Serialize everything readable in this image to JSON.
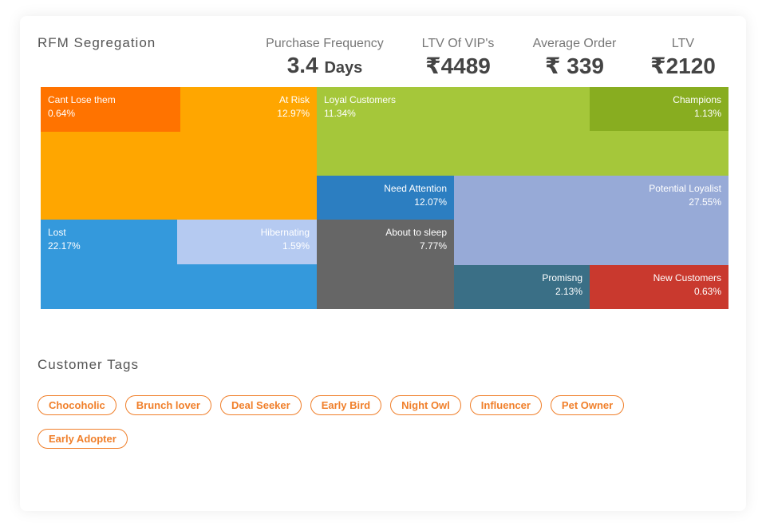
{
  "header": {
    "title": "RFM Segregation"
  },
  "stats": [
    {
      "label": "Purchase Frequency",
      "value": "3.4",
      "unit": "Days"
    },
    {
      "label": "LTV Of VIP's",
      "value": "₹4489"
    },
    {
      "label": "Average Order",
      "value": "₹ 339"
    },
    {
      "label": "LTV",
      "value": "₹2120"
    }
  ],
  "segments": [
    {
      "name": "At Risk",
      "share": "12.97%"
    },
    {
      "name": "Cant Lose them",
      "share": "0.64%"
    },
    {
      "name": "Loyal Customers",
      "share": "11.34%"
    },
    {
      "name": "Champions",
      "share": "1.13%"
    },
    {
      "name": "Need Attention",
      "share": "12.07%"
    },
    {
      "name": "Potential Loyalist",
      "share": "27.55%"
    },
    {
      "name": "About to sleep",
      "share": "7.77%"
    },
    {
      "name": "Promisng",
      "share": "2.13%"
    },
    {
      "name": "New Customers",
      "share": "0.63%"
    },
    {
      "name": "Lost",
      "share": "22.17%"
    },
    {
      "name": "Hibernating",
      "share": "1.59%"
    }
  ],
  "tags_section": {
    "title": "Customer Tags",
    "tags": [
      "Chocoholic",
      "Brunch lover",
      "Deal Seeker",
      "Early Bird",
      "Night Owl",
      "Influencer",
      "Pet Owner",
      "Early Adopter"
    ]
  }
}
